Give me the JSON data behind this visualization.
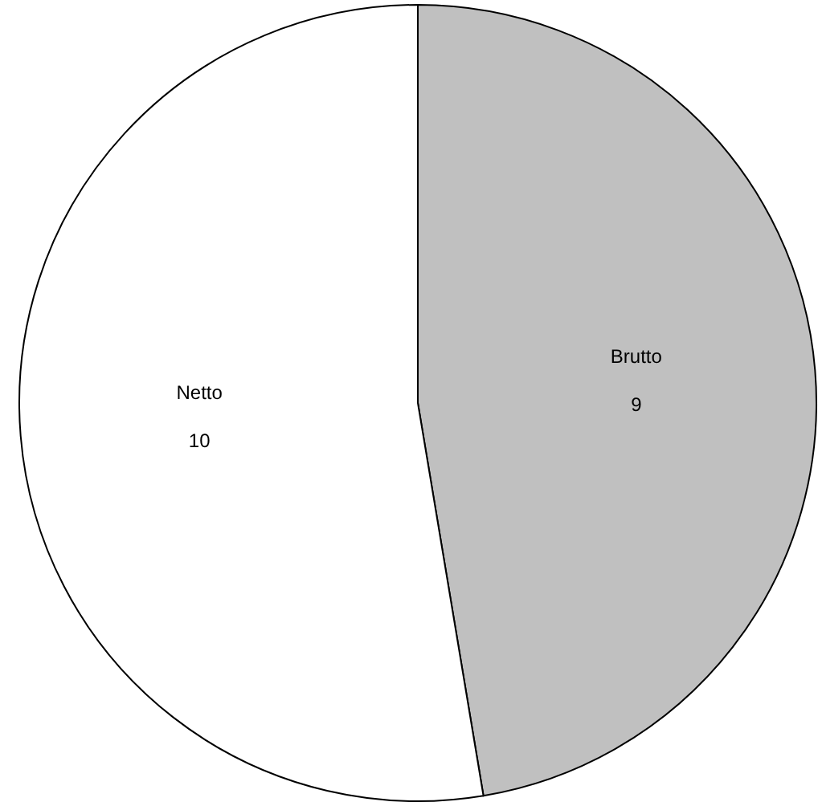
{
  "chart_data": {
    "type": "pie",
    "categories": [
      "Brutto",
      "Netto"
    ],
    "values": [
      9,
      10
    ],
    "colors": [
      "#c0c0c0",
      "#ffffff"
    ],
    "data_labels": true
  }
}
